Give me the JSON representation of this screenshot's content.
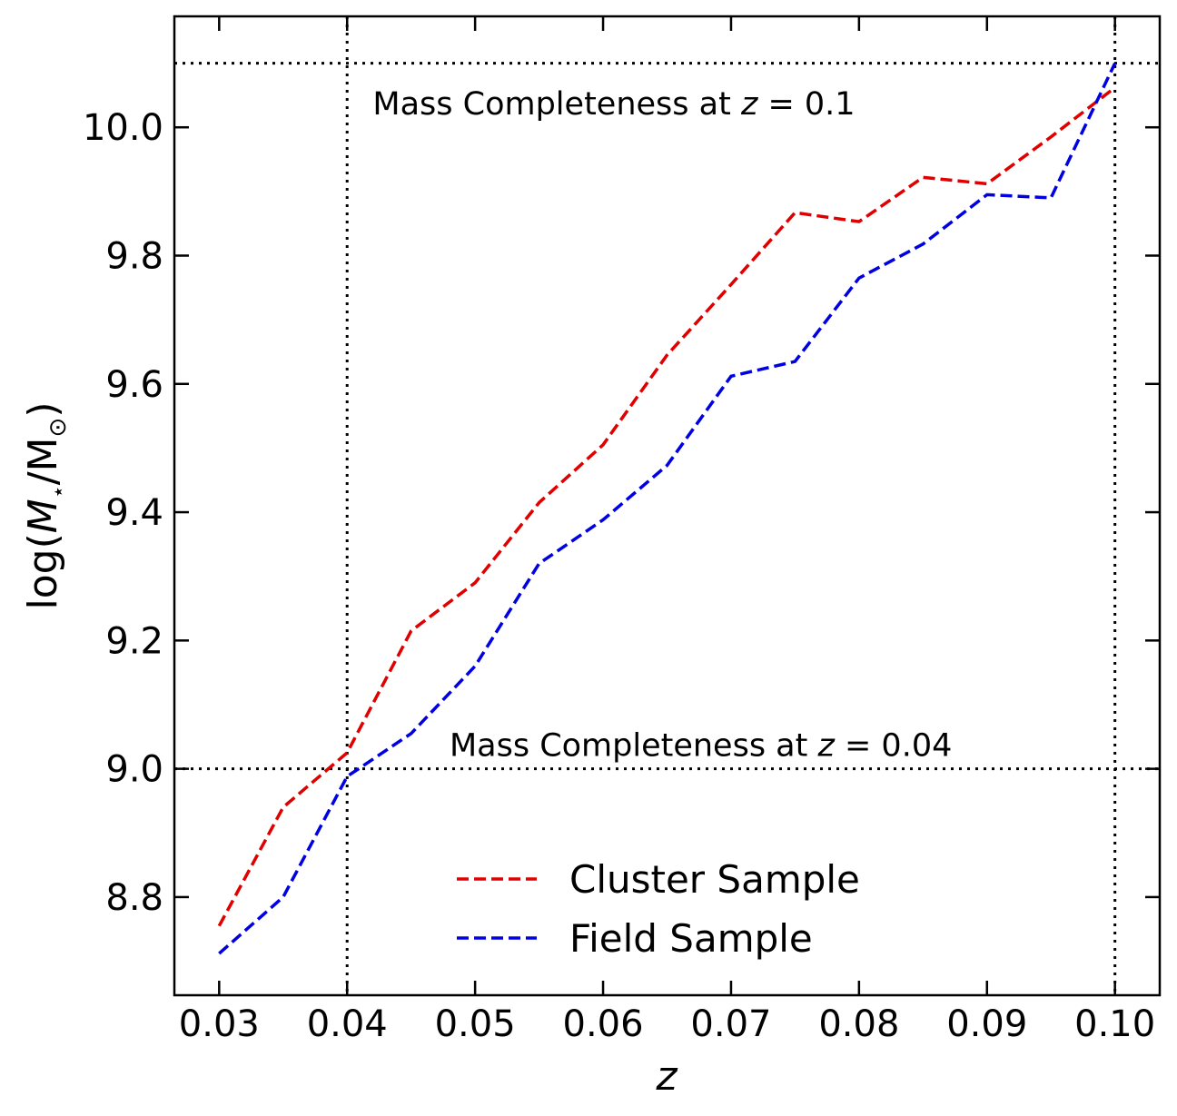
{
  "chart_data": {
    "type": "line",
    "xlabel": "z",
    "ylabel": {
      "prefix": "log(",
      "m": "M",
      "star": "⋆",
      "slash": "/M",
      "sun": "⊙",
      "suffix": ")"
    },
    "xlim": [
      0.0265,
      0.1035
    ],
    "ylim": [
      8.647,
      10.173
    ],
    "x_ticks": [
      0.03,
      0.04,
      0.05,
      0.06,
      0.07,
      0.08,
      0.09,
      0.1
    ],
    "x_tick_labels": [
      "0.03",
      "0.04",
      "0.05",
      "0.06",
      "0.07",
      "0.08",
      "0.09",
      "0.10"
    ],
    "y_ticks": [
      8.8,
      9.0,
      9.2,
      9.4,
      9.6,
      9.8,
      10.0
    ],
    "y_tick_labels": [
      "8.8",
      "9.0",
      "9.2",
      "9.4",
      "9.6",
      "9.8",
      "10.0"
    ],
    "series": [
      {
        "name": "Cluster Sample",
        "color": "#e00000",
        "x": [
          0.03,
          0.035,
          0.04,
          0.045,
          0.05,
          0.055,
          0.06,
          0.065,
          0.07,
          0.075,
          0.08,
          0.085,
          0.09,
          0.095,
          0.1
        ],
        "y": [
          8.755,
          8.94,
          9.025,
          9.215,
          9.29,
          9.415,
          9.505,
          9.645,
          9.755,
          9.867,
          9.853,
          9.922,
          9.912,
          9.985,
          10.062
        ]
      },
      {
        "name": "Field Sample",
        "color": "#0000e0",
        "x": [
          0.03,
          0.035,
          0.04,
          0.045,
          0.05,
          0.055,
          0.06,
          0.065,
          0.07,
          0.075,
          0.08,
          0.085,
          0.09,
          0.095,
          0.1
        ],
        "y": [
          8.712,
          8.8,
          8.988,
          9.055,
          9.16,
          9.32,
          9.388,
          9.473,
          9.612,
          9.635,
          9.765,
          9.818,
          9.895,
          9.89,
          10.1
        ]
      }
    ],
    "reference_lines": {
      "vertical": [
        0.04,
        0.1
      ],
      "horizontal": [
        9.0,
        10.1
      ]
    },
    "annotations": [
      {
        "prefix": "Mass Completeness at ",
        "var": "z",
        "suffix": " = 0.1",
        "x": 0.042,
        "y": 10.02
      },
      {
        "prefix": "Mass Completeness at ",
        "var": "z",
        "suffix": " = 0.04",
        "x": 0.048,
        "y": 9.02
      }
    ],
    "legend_position": "lower-center"
  }
}
